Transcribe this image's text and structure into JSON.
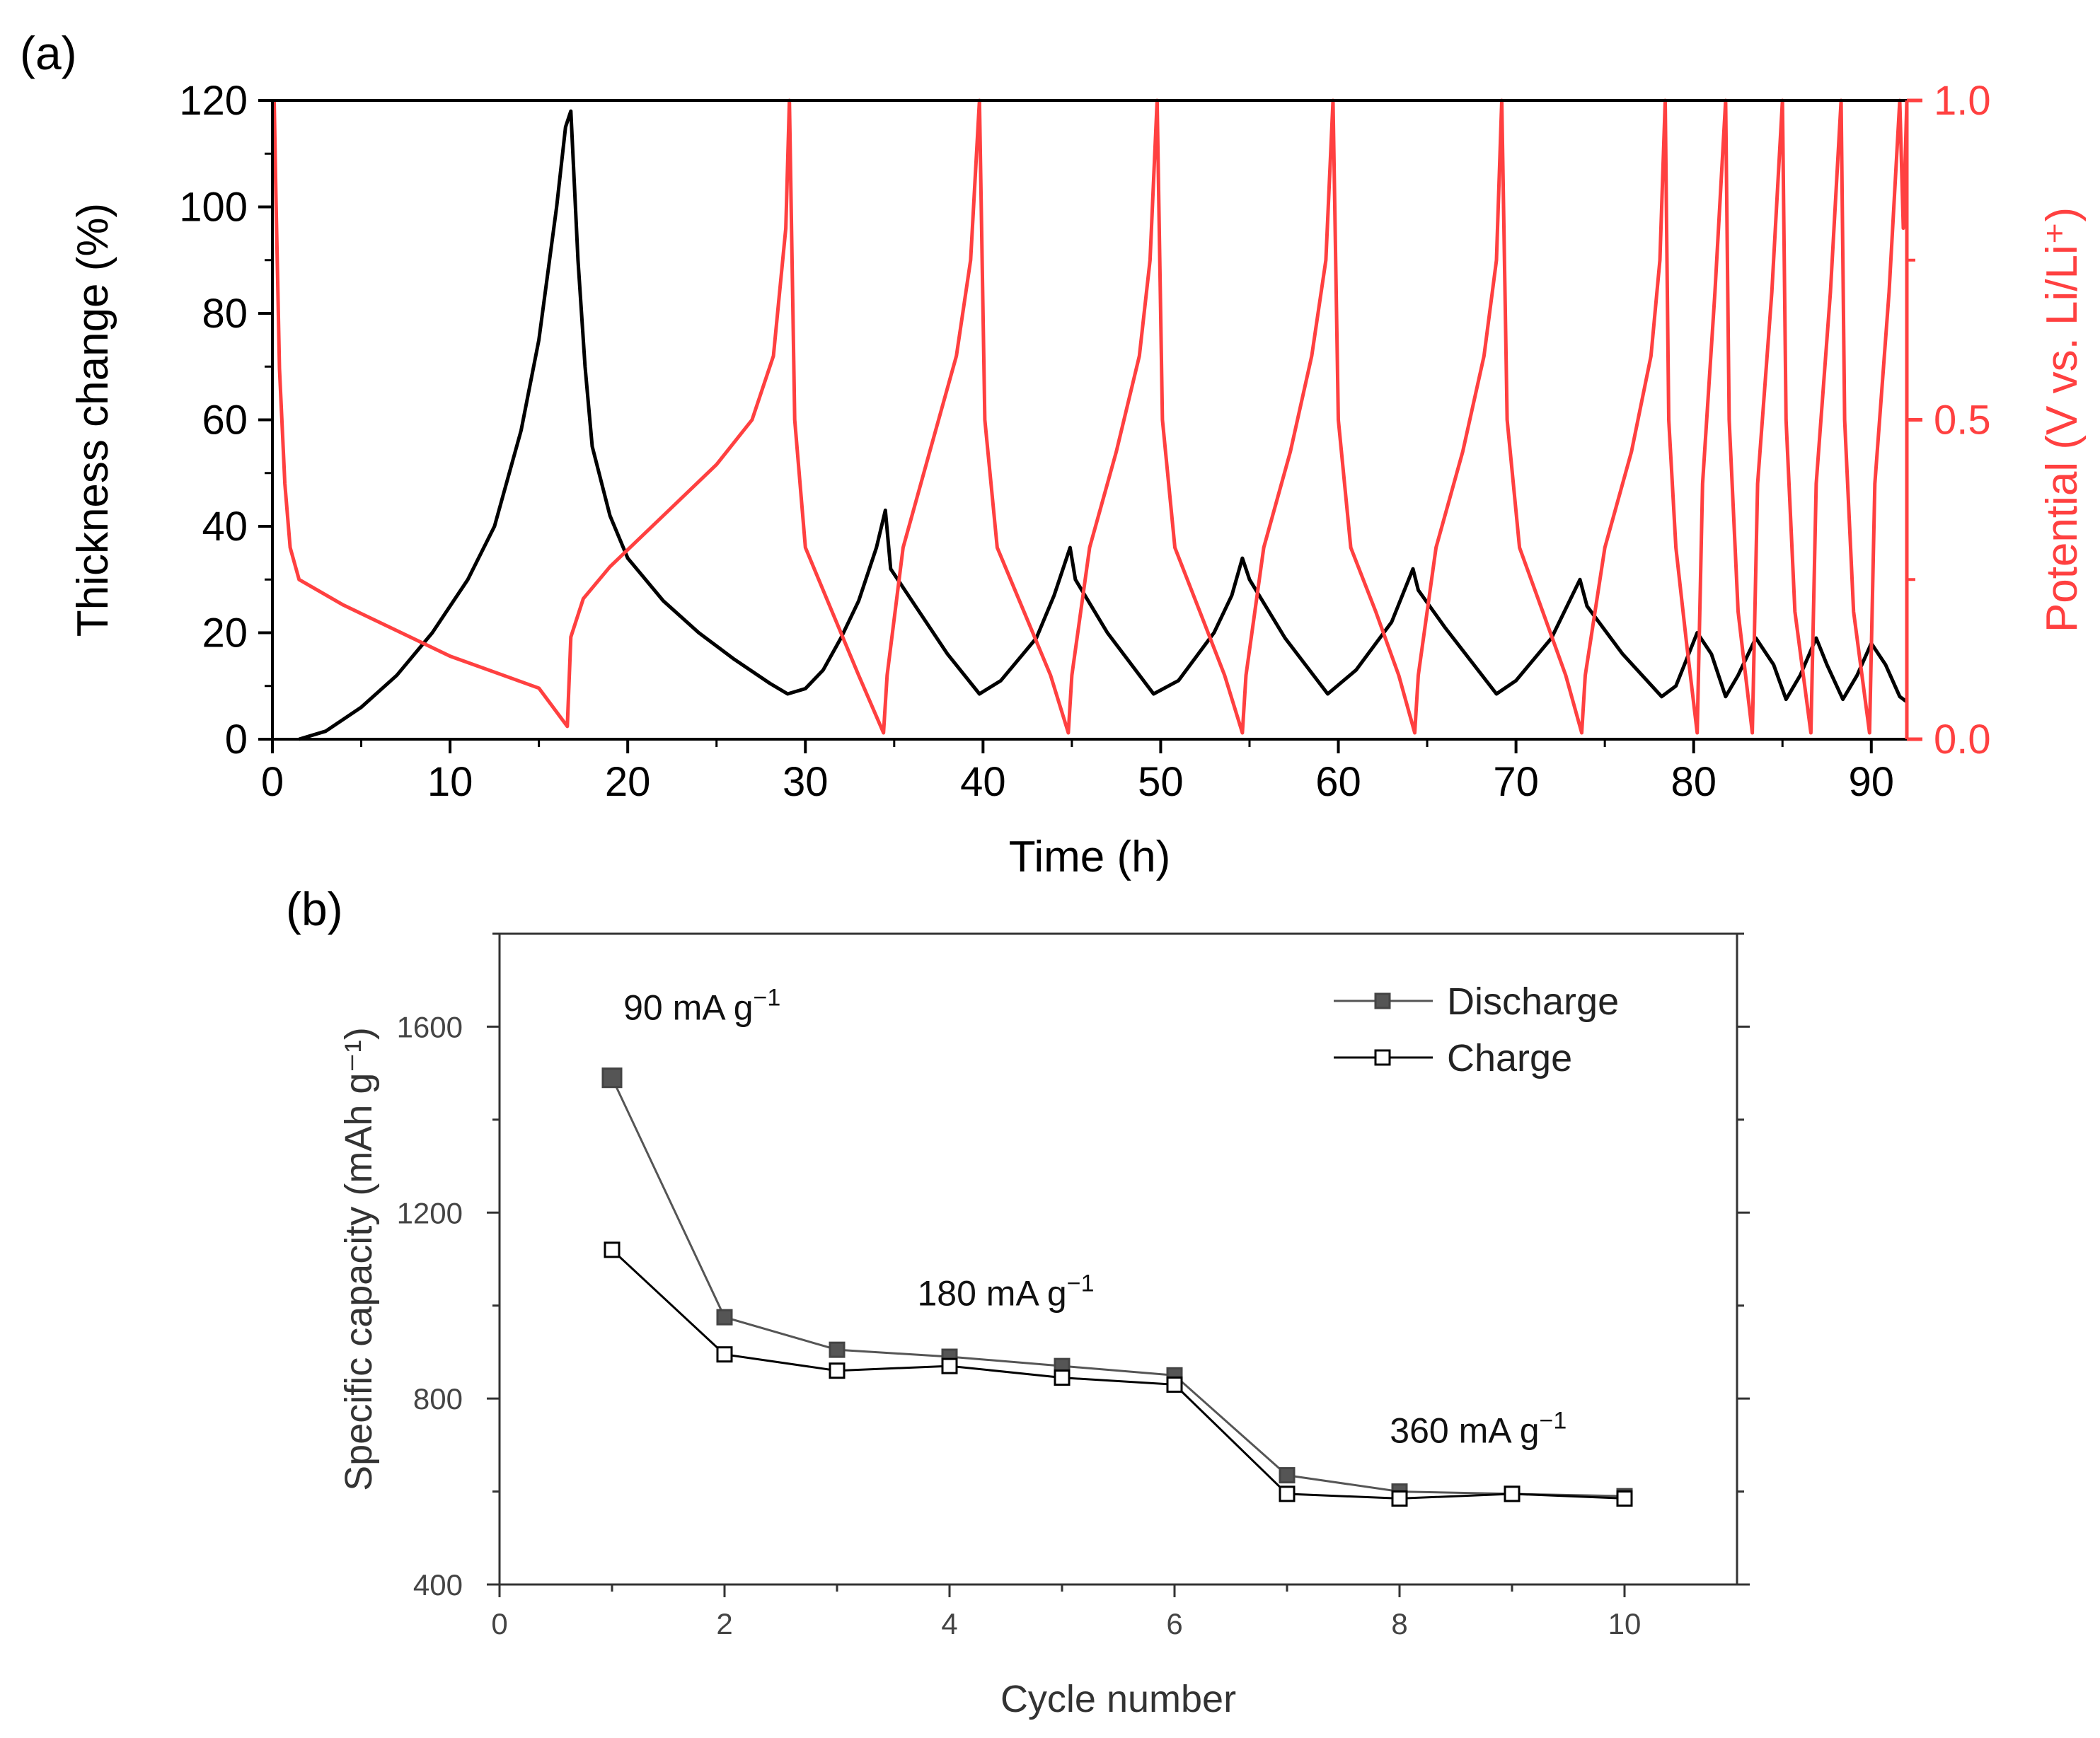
{
  "figure": {
    "panel_a_label": "(a)",
    "panel_b_label": "(b)"
  },
  "colors": {
    "thickness": "#000000",
    "potential": "#ff4040",
    "discharge_fill": "#555555",
    "charge_fill": "#ffffff",
    "axis": "#000000"
  },
  "chart_data": [
    {
      "id": "a",
      "type": "line",
      "xlabel": "Time (h)",
      "ylabel_left": "Thickness change (%)",
      "ylabel_right": "Potential (V vs. Li/Li⁺)",
      "xlim": [
        0,
        92
      ],
      "ylim_left": [
        0,
        120
      ],
      "ylim_right": [
        0,
        1.0
      ],
      "x_ticks": [
        0,
        10,
        20,
        30,
        40,
        50,
        60,
        70,
        80,
        90
      ],
      "y_left_ticks": [
        0,
        20,
        40,
        60,
        80,
        100,
        120
      ],
      "y_right_ticks": [
        "0.0",
        "0.5",
        "1.0"
      ],
      "y_right_tick_values": [
        0,
        0.5,
        1.0
      ],
      "series": [
        {
          "name": "Thickness change",
          "axis": "left",
          "color": "#000000",
          "points": [
            [
              1.5,
              0
            ],
            [
              3,
              1.5
            ],
            [
              5,
              6
            ],
            [
              7,
              12
            ],
            [
              9,
              20
            ],
            [
              11,
              30
            ],
            [
              12.5,
              40
            ],
            [
              14,
              58
            ],
            [
              15,
              75
            ],
            [
              16,
              100
            ],
            [
              16.5,
              115
            ],
            [
              16.8,
              118
            ],
            [
              17.2,
              90
            ],
            [
              17.6,
              70
            ],
            [
              18,
              55
            ],
            [
              19,
              42
            ],
            [
              20,
              34
            ],
            [
              22,
              26
            ],
            [
              24,
              20
            ],
            [
              26,
              15
            ],
            [
              28,
              10.5
            ],
            [
              29,
              8.5
            ],
            [
              30,
              9.5
            ],
            [
              31,
              13
            ],
            [
              32,
              19
            ],
            [
              33,
              26
            ],
            [
              34,
              36
            ],
            [
              34.5,
              43
            ],
            [
              34.8,
              32
            ],
            [
              36,
              26
            ],
            [
              38,
              16
            ],
            [
              39.8,
              8.5
            ],
            [
              41,
              11
            ],
            [
              43,
              19
            ],
            [
              44,
              27
            ],
            [
              44.9,
              36
            ],
            [
              45.2,
              30
            ],
            [
              47,
              20
            ],
            [
              49.6,
              8.5
            ],
            [
              51,
              11
            ],
            [
              53,
              20
            ],
            [
              54,
              27
            ],
            [
              54.6,
              34
            ],
            [
              55,
              30
            ],
            [
              57,
              19
            ],
            [
              59.4,
              8.5
            ],
            [
              61,
              13
            ],
            [
              63,
              22
            ],
            [
              64.2,
              32
            ],
            [
              64.5,
              28
            ],
            [
              66,
              21
            ],
            [
              68.9,
              8.5
            ],
            [
              70,
              11
            ],
            [
              72,
              19
            ],
            [
              73.6,
              30
            ],
            [
              74,
              25
            ],
            [
              76,
              16
            ],
            [
              78.2,
              8
            ],
            [
              79,
              10
            ],
            [
              80.2,
              20
            ],
            [
              81,
              16
            ],
            [
              81.8,
              8
            ],
            [
              82.5,
              12
            ],
            [
              83.5,
              19
            ],
            [
              84.5,
              14
            ],
            [
              85.2,
              7.5
            ],
            [
              86,
              12
            ],
            [
              86.9,
              19
            ],
            [
              87.5,
              14
            ],
            [
              88.4,
              7.5
            ],
            [
              89.2,
              12
            ],
            [
              90,
              18
            ],
            [
              90.8,
              14
            ],
            [
              91.6,
              8
            ],
            [
              92,
              7
            ]
          ]
        },
        {
          "name": "Potential",
          "axis": "right",
          "color": "#ff4040",
          "points": [
            [
              0.1,
              1.0
            ],
            [
              0.2,
              0.85
            ],
            [
              0.4,
              0.58
            ],
            [
              0.7,
              0.4
            ],
            [
              1,
              0.3
            ],
            [
              1.5,
              0.25
            ],
            [
              4,
              0.21
            ],
            [
              7,
              0.17
            ],
            [
              10,
              0.13
            ],
            [
              13,
              0.1
            ],
            [
              15,
              0.08
            ],
            [
              16.6,
              0.02
            ],
            [
              16.8,
              0.16
            ],
            [
              17.5,
              0.22
            ],
            [
              19,
              0.27
            ],
            [
              22,
              0.35
            ],
            [
              25,
              0.43
            ],
            [
              27,
              0.5
            ],
            [
              28.2,
              0.6
            ],
            [
              28.9,
              0.8
            ],
            [
              29.1,
              1.0
            ],
            [
              29.4,
              0.5
            ],
            [
              30,
              0.3
            ],
            [
              31.5,
              0.2
            ],
            [
              33,
              0.1
            ],
            [
              34.4,
              0.01
            ],
            [
              34.6,
              0.1
            ],
            [
              35.5,
              0.3
            ],
            [
              37,
              0.45
            ],
            [
              38.5,
              0.6
            ],
            [
              39.3,
              0.75
            ],
            [
              39.8,
              1.0
            ],
            [
              40.1,
              0.5
            ],
            [
              40.8,
              0.3
            ],
            [
              42.3,
              0.2
            ],
            [
              43.8,
              0.1
            ],
            [
              44.8,
              0.01
            ],
            [
              45,
              0.1
            ],
            [
              46,
              0.3
            ],
            [
              47.5,
              0.45
            ],
            [
              48.8,
              0.6
            ],
            [
              49.4,
              0.75
            ],
            [
              49.8,
              1.0
            ],
            [
              50.1,
              0.5
            ],
            [
              50.8,
              0.3
            ],
            [
              52.2,
              0.2
            ],
            [
              53.6,
              0.1
            ],
            [
              54.6,
              0.01
            ],
            [
              54.8,
              0.1
            ],
            [
              55.8,
              0.3
            ],
            [
              57.3,
              0.45
            ],
            [
              58.5,
              0.6
            ],
            [
              59.3,
              0.75
            ],
            [
              59.7,
              1.0
            ],
            [
              60,
              0.5
            ],
            [
              60.7,
              0.3
            ],
            [
              62.1,
              0.2
            ],
            [
              63.4,
              0.1
            ],
            [
              64.3,
              0.01
            ],
            [
              64.5,
              0.1
            ],
            [
              65.5,
              0.3
            ],
            [
              67,
              0.45
            ],
            [
              68.2,
              0.6
            ],
            [
              68.9,
              0.75
            ],
            [
              69.2,
              1.0
            ],
            [
              69.5,
              0.5
            ],
            [
              70.2,
              0.3
            ],
            [
              71.5,
              0.2
            ],
            [
              72.8,
              0.1
            ],
            [
              73.7,
              0.01
            ],
            [
              73.9,
              0.1
            ],
            [
              75,
              0.3
            ],
            [
              76.5,
              0.45
            ],
            [
              77.6,
              0.6
            ],
            [
              78.1,
              0.75
            ],
            [
              78.4,
              1.0
            ],
            [
              78.6,
              0.5
            ],
            [
              79,
              0.3
            ],
            [
              79.6,
              0.15
            ],
            [
              80.2,
              0.01
            ],
            [
              80.5,
              0.4
            ],
            [
              81.2,
              0.7
            ],
            [
              81.8,
              1.0
            ],
            [
              82,
              0.5
            ],
            [
              82.5,
              0.2
            ],
            [
              83.3,
              0.01
            ],
            [
              83.6,
              0.4
            ],
            [
              84.4,
              0.7
            ],
            [
              85,
              1.0
            ],
            [
              85.2,
              0.5
            ],
            [
              85.7,
              0.2
            ],
            [
              86.6,
              0.01
            ],
            [
              86.9,
              0.4
            ],
            [
              87.7,
              0.7
            ],
            [
              88.3,
              1.0
            ],
            [
              88.5,
              0.5
            ],
            [
              89,
              0.2
            ],
            [
              89.9,
              0.01
            ],
            [
              90.2,
              0.4
            ],
            [
              91,
              0.7
            ],
            [
              91.6,
              1.0
            ],
            [
              91.8,
              0.8
            ],
            [
              92,
              1.0
            ]
          ]
        }
      ]
    },
    {
      "id": "b",
      "type": "line",
      "xlabel": "Cycle number",
      "ylabel": "Specific capacity (mAh g⁻¹)",
      "xlim": [
        0,
        11
      ],
      "ylim": [
        400,
        1800
      ],
      "x_ticks": [
        0,
        2,
        4,
        6,
        8,
        10
      ],
      "y_ticks": [
        400,
        800,
        1200,
        1600
      ],
      "x": [
        1,
        2,
        3,
        4,
        5,
        6,
        7,
        8,
        9,
        10
      ],
      "series": [
        {
          "name": "Discharge",
          "marker": "filled-square",
          "color": "#555555",
          "values": [
            1490,
            975,
            905,
            890,
            870,
            850,
            635,
            600,
            595,
            590
          ]
        },
        {
          "name": "Charge",
          "marker": "open-square",
          "color": "#000000",
          "values": [
            1120,
            895,
            860,
            870,
            845,
            830,
            595,
            585,
            595,
            585
          ]
        }
      ],
      "legend": [
        "Discharge",
        "Charge"
      ],
      "legend_position": "top-right",
      "annotations": [
        {
          "label": "90 mA g",
          "sup": "−1",
          "at": [
            1.8,
            1615
          ]
        },
        {
          "label": "180 mA g",
          "sup": "−1",
          "at": [
            4.5,
            1000
          ]
        },
        {
          "label": "360 mA g",
          "sup": "−1",
          "at": [
            8.7,
            705
          ]
        }
      ]
    }
  ]
}
